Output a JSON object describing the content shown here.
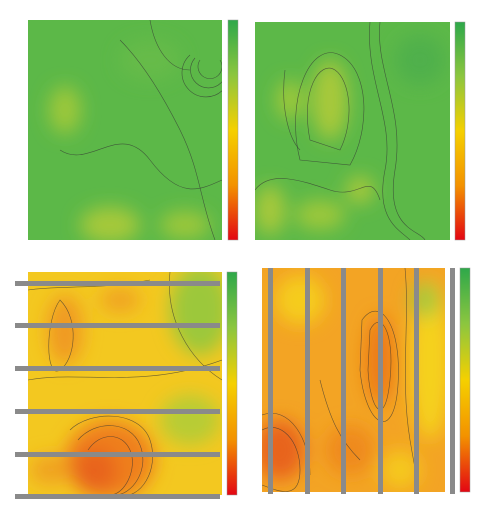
{
  "panels": [
    {
      "gradient": [
        "#2ea84a",
        "#8cc63f",
        "#f5d000",
        "#f39200",
        "#e30613"
      ]
    },
    {
      "gradient": [
        "#2ea84a",
        "#8cc63f",
        "#f5d000",
        "#f39200",
        "#e30613"
      ]
    },
    {
      "gradient": [
        "#2ea84a",
        "#8cc63f",
        "#f5d000",
        "#f39200",
        "#e30613"
      ]
    },
    {
      "gradient": [
        "#2ea84a",
        "#8cc63f",
        "#f5d000",
        "#f39200",
        "#e30613"
      ]
    }
  ]
}
